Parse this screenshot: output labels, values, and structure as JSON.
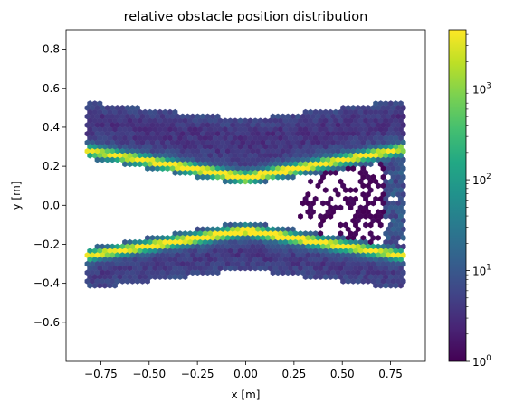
{
  "chart_data": {
    "type": "heatmap",
    "subtype": "hexbin",
    "title": "relative obstacle position distribution",
    "xlabel": "x [m]",
    "ylabel": "y [m]",
    "xlim": [
      -0.93,
      0.93
    ],
    "ylim": [
      -0.8,
      0.9
    ],
    "x_ticks": [
      -0.75,
      -0.5,
      -0.25,
      0.0,
      0.25,
      0.5,
      0.75
    ],
    "x_tick_labels": [
      "−0.75",
      "−0.50",
      "−0.25",
      "0.00",
      "0.25",
      "0.50",
      "0.75"
    ],
    "y_ticks": [
      -0.6,
      -0.4,
      -0.2,
      0.0,
      0.2,
      0.4,
      0.6,
      0.8
    ],
    "y_tick_labels": [
      "−0.6",
      "−0.4",
      "−0.2",
      "0.0",
      "0.2",
      "0.4",
      "0.6",
      "0.8"
    ],
    "colorscale": "viridis",
    "color_scale_type": "log",
    "color_range": [
      1,
      4500
    ],
    "colorbar_ticks": [
      1,
      10,
      100,
      1000
    ],
    "colorbar_tick_labels": [
      "10",
      "10",
      "10",
      "10"
    ],
    "colorbar_tick_exponents": [
      "0",
      "1",
      "2",
      "3"
    ],
    "grid": false,
    "bands": [
      {
        "name": "upper",
        "x_range": [
          -0.82,
          0.82
        ],
        "outer_y_edges": [
          0.53,
          0.44,
          0.54
        ],
        "inner_y_edges": [
          0.24,
          0.1,
          0.24
        ],
        "peak_y": [
          0.28,
          0.14,
          0.29
        ],
        "peak_count": 3000
      },
      {
        "name": "lower",
        "x_range": [
          -0.82,
          0.82
        ],
        "outer_y_edges": [
          -0.43,
          -0.33,
          -0.43
        ],
        "inner_y_edges": [
          -0.22,
          -0.08,
          -0.22
        ],
        "peak_y": [
          -0.26,
          -0.13,
          -0.26
        ],
        "peak_count": 3000
      }
    ],
    "sparse_region": {
      "x_range": [
        0.28,
        0.82
      ],
      "y_range": [
        -0.22,
        0.24
      ],
      "count_range": [
        1,
        5
      ]
    }
  }
}
